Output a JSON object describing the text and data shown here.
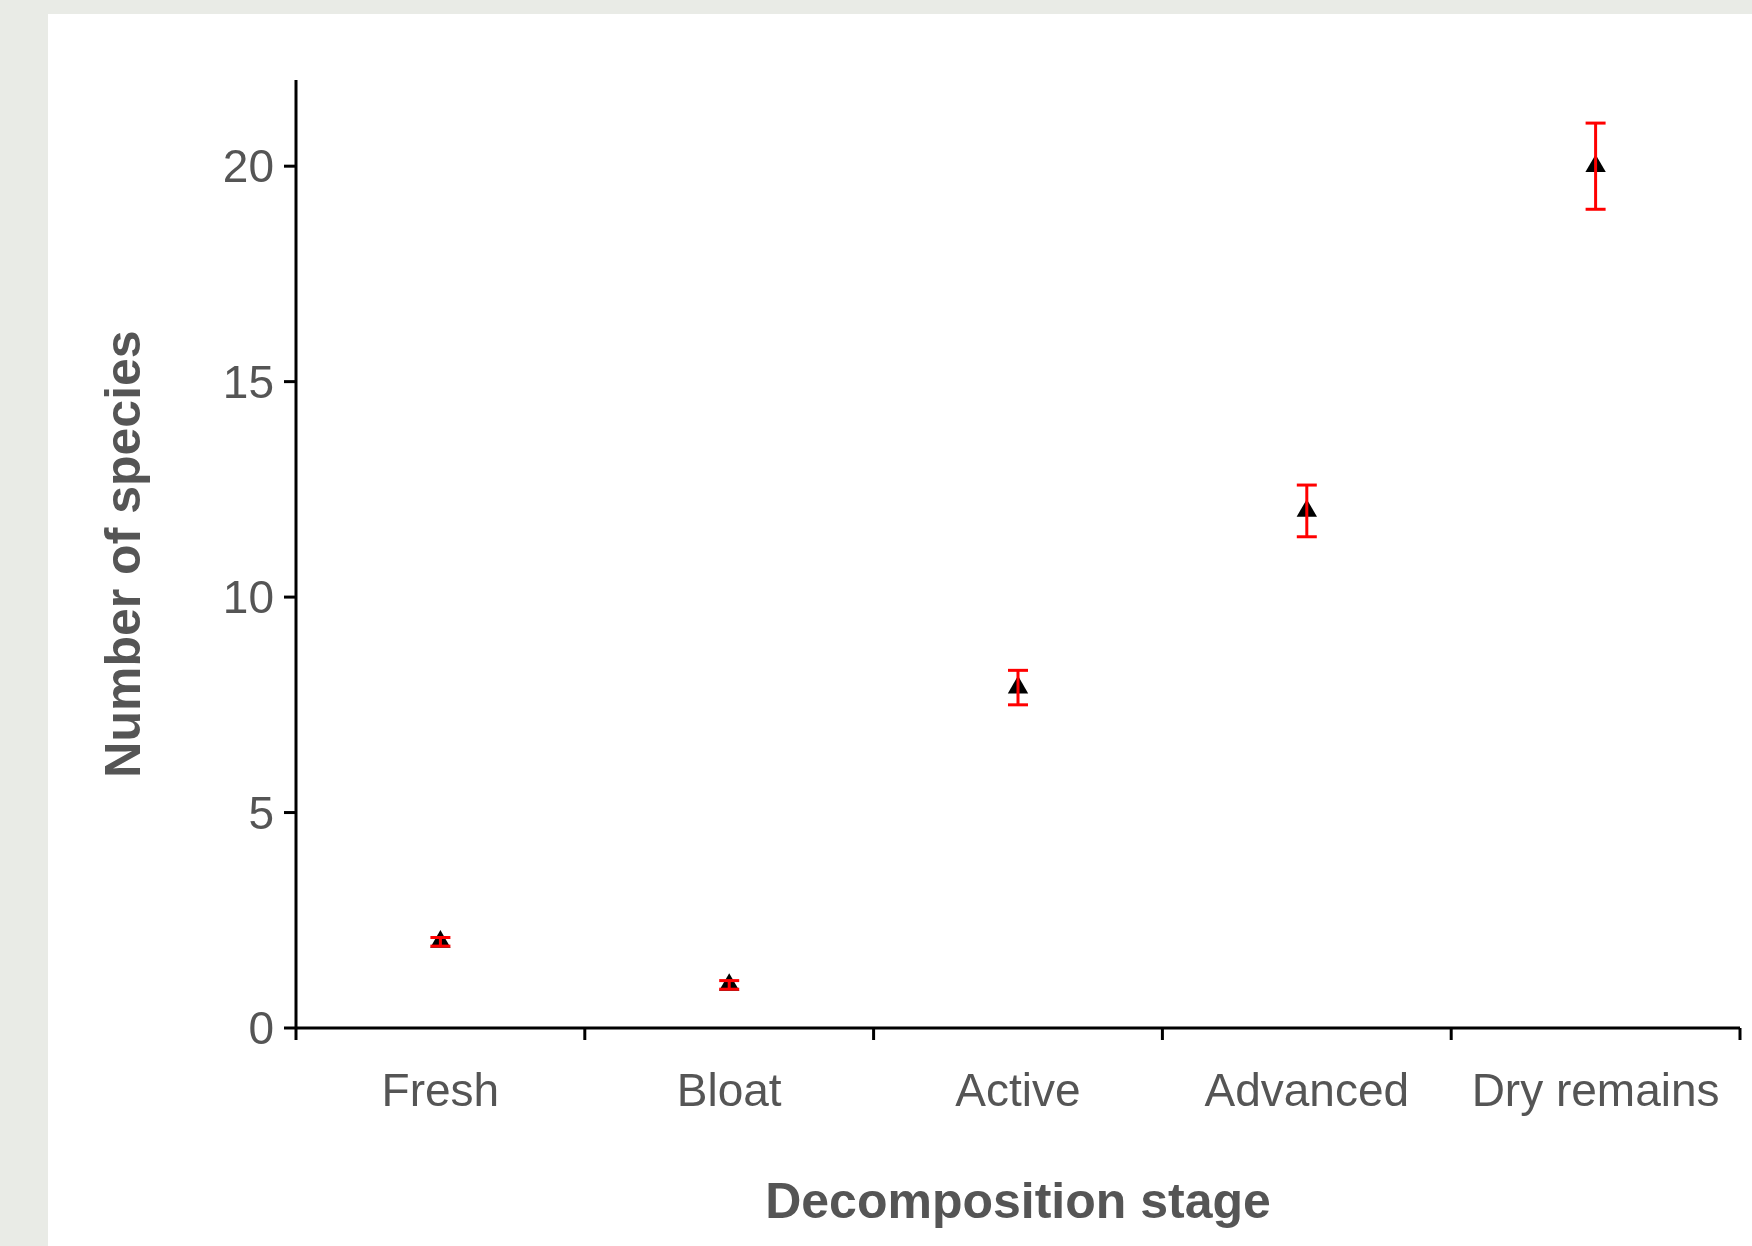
{
  "chart_data": {
    "type": "scatter",
    "xlabel": "Decomposition stage",
    "ylabel": "Number of species",
    "categories": [
      "Fresh",
      "Bloat",
      "Active",
      "Advanced",
      "Dry remains"
    ],
    "series": [
      {
        "color": "#000000",
        "values": [
          2,
          1,
          7.9,
          12,
          20
        ],
        "errors": [
          0.1,
          0.1,
          0.4,
          0.6,
          1
        ]
      }
    ],
    "ylim": [
      0,
      22
    ],
    "yticks": [
      0,
      5,
      10,
      15,
      20
    ],
    "grid": false,
    "marker": "triangle"
  }
}
